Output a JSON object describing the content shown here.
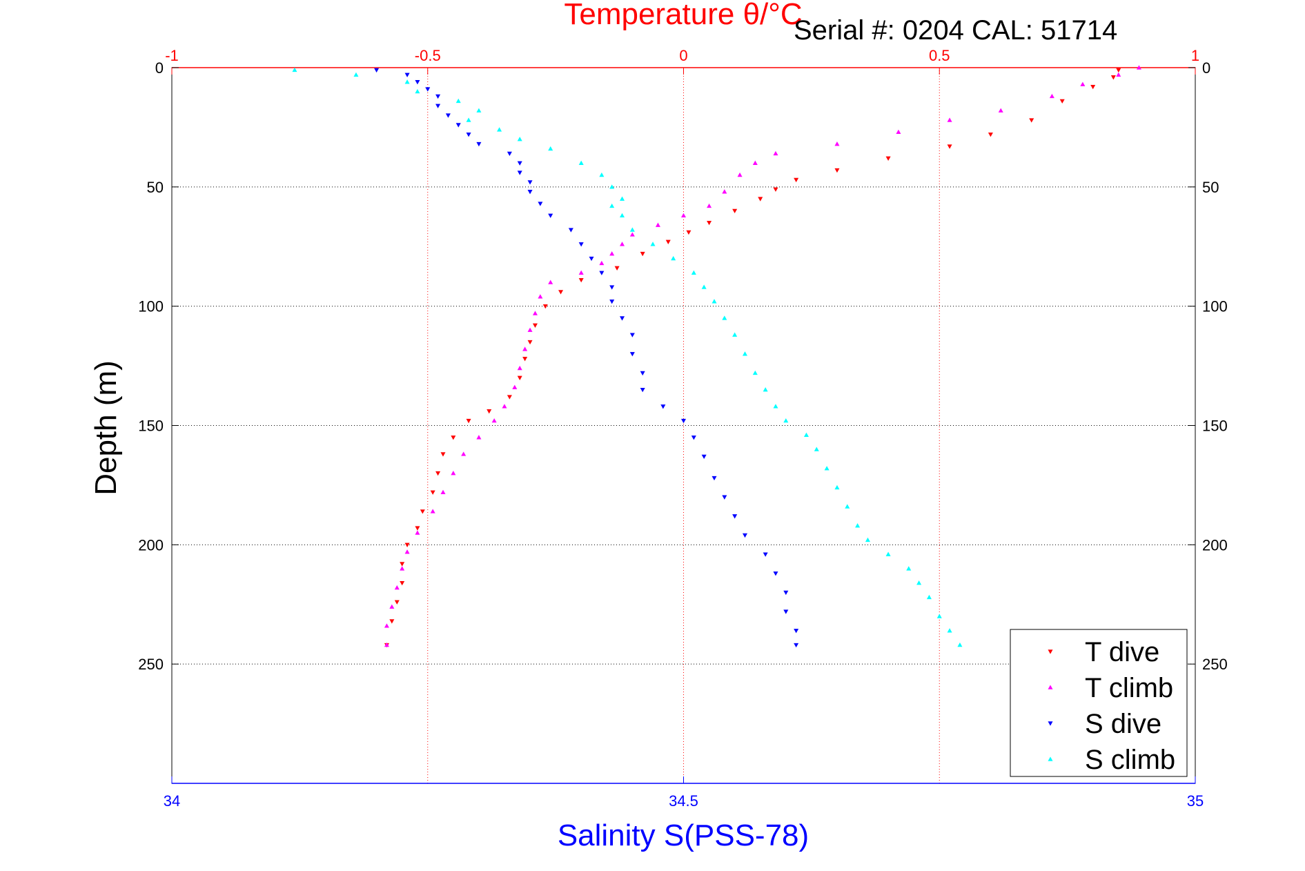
{
  "chart_data": {
    "type": "scatter",
    "title": "Temperature θ/°C",
    "subtitle": "Serial #: 0204  CAL: 51714",
    "xlabel": "Salinity S(PSS-78)",
    "ylabel": "Depth (m)",
    "top_axis": {
      "label": "Temperature θ/°C",
      "range": [
        -1,
        1
      ],
      "ticks": [
        "-1",
        "-0.5",
        "0",
        "0.5",
        "1"
      ],
      "color": "#ff0000"
    },
    "bottom_axis": {
      "label": "Salinity S(PSS-78)",
      "range": [
        34,
        35
      ],
      "ticks": [
        "34",
        "34.5",
        "35"
      ],
      "color": "#0000ff"
    },
    "y_axis": {
      "range": [
        0,
        300
      ],
      "reversed": true,
      "ticks": [
        "0",
        "50",
        "100",
        "150",
        "200",
        "250"
      ]
    },
    "grid": true,
    "legend_position": "bottom-right",
    "series": [
      {
        "name": "T dive",
        "axis": "temperature",
        "color": "#ff0000",
        "marker": "triangle-down",
        "points": [
          [
            0.85,
            1
          ],
          [
            0.84,
            4
          ],
          [
            0.8,
            8
          ],
          [
            0.74,
            14
          ],
          [
            0.68,
            22
          ],
          [
            0.6,
            28
          ],
          [
            0.52,
            33
          ],
          [
            0.4,
            38
          ],
          [
            0.3,
            43
          ],
          [
            0.22,
            47
          ],
          [
            0.18,
            51
          ],
          [
            0.15,
            55
          ],
          [
            0.1,
            60
          ],
          [
            0.05,
            65
          ],
          [
            0.01,
            69
          ],
          [
            -0.03,
            73
          ],
          [
            -0.08,
            78
          ],
          [
            -0.13,
            84
          ],
          [
            -0.2,
            89
          ],
          [
            -0.24,
            94
          ],
          [
            -0.27,
            100
          ],
          [
            -0.29,
            108
          ],
          [
            -0.3,
            115
          ],
          [
            -0.31,
            122
          ],
          [
            -0.32,
            130
          ],
          [
            -0.34,
            138
          ],
          [
            -0.38,
            144
          ],
          [
            -0.42,
            148
          ],
          [
            -0.45,
            155
          ],
          [
            -0.47,
            162
          ],
          [
            -0.48,
            170
          ],
          [
            -0.49,
            178
          ],
          [
            -0.51,
            186
          ],
          [
            -0.52,
            193
          ],
          [
            -0.54,
            200
          ],
          [
            -0.55,
            208
          ],
          [
            -0.55,
            216
          ],
          [
            -0.56,
            224
          ],
          [
            -0.57,
            232
          ],
          [
            -0.58,
            242
          ]
        ]
      },
      {
        "name": "T climb",
        "axis": "temperature",
        "color": "#ff00ff",
        "marker": "triangle-up",
        "points": [
          [
            0.89,
            0
          ],
          [
            0.85,
            3
          ],
          [
            0.78,
            7
          ],
          [
            0.72,
            12
          ],
          [
            0.62,
            18
          ],
          [
            0.52,
            22
          ],
          [
            0.42,
            27
          ],
          [
            0.3,
            32
          ],
          [
            0.18,
            36
          ],
          [
            0.14,
            40
          ],
          [
            0.11,
            45
          ],
          [
            0.08,
            52
          ],
          [
            0.05,
            58
          ],
          [
            0.0,
            62
          ],
          [
            -0.05,
            66
          ],
          [
            -0.1,
            70
          ],
          [
            -0.12,
            74
          ],
          [
            -0.14,
            78
          ],
          [
            -0.16,
            82
          ],
          [
            -0.2,
            86
          ],
          [
            -0.26,
            90
          ],
          [
            -0.28,
            96
          ],
          [
            -0.29,
            103
          ],
          [
            -0.3,
            110
          ],
          [
            -0.31,
            118
          ],
          [
            -0.32,
            126
          ],
          [
            -0.33,
            134
          ],
          [
            -0.35,
            142
          ],
          [
            -0.37,
            148
          ],
          [
            -0.4,
            155
          ],
          [
            -0.43,
            162
          ],
          [
            -0.45,
            170
          ],
          [
            -0.47,
            178
          ],
          [
            -0.49,
            186
          ],
          [
            -0.52,
            195
          ],
          [
            -0.54,
            203
          ],
          [
            -0.55,
            210
          ],
          [
            -0.56,
            218
          ],
          [
            -0.57,
            226
          ],
          [
            -0.58,
            234
          ],
          [
            -0.58,
            242
          ]
        ]
      },
      {
        "name": "S dive",
        "axis": "salinity",
        "color": "#0000ff",
        "marker": "triangle-down",
        "points": [
          [
            34.2,
            1
          ],
          [
            34.23,
            3
          ],
          [
            34.24,
            6
          ],
          [
            34.25,
            9
          ],
          [
            34.26,
            12
          ],
          [
            34.26,
            16
          ],
          [
            34.27,
            20
          ],
          [
            34.28,
            24
          ],
          [
            34.29,
            28
          ],
          [
            34.3,
            32
          ],
          [
            34.33,
            36
          ],
          [
            34.34,
            40
          ],
          [
            34.34,
            44
          ],
          [
            34.35,
            48
          ],
          [
            34.35,
            52
          ],
          [
            34.36,
            57
          ],
          [
            34.37,
            62
          ],
          [
            34.39,
            68
          ],
          [
            34.4,
            74
          ],
          [
            34.41,
            80
          ],
          [
            34.42,
            86
          ],
          [
            34.43,
            92
          ],
          [
            34.43,
            98
          ],
          [
            34.44,
            105
          ],
          [
            34.45,
            112
          ],
          [
            34.45,
            120
          ],
          [
            34.46,
            128
          ],
          [
            34.46,
            135
          ],
          [
            34.48,
            142
          ],
          [
            34.5,
            148
          ],
          [
            34.51,
            155
          ],
          [
            34.52,
            163
          ],
          [
            34.53,
            172
          ],
          [
            34.54,
            180
          ],
          [
            34.55,
            188
          ],
          [
            34.56,
            196
          ],
          [
            34.58,
            204
          ],
          [
            34.59,
            212
          ],
          [
            34.6,
            220
          ],
          [
            34.6,
            228
          ],
          [
            34.61,
            236
          ],
          [
            34.61,
            242
          ]
        ]
      },
      {
        "name": "S climb",
        "axis": "salinity",
        "color": "#00ffff",
        "marker": "triangle-up",
        "points": [
          [
            34.12,
            1
          ],
          [
            34.18,
            3
          ],
          [
            34.23,
            6
          ],
          [
            34.24,
            10
          ],
          [
            34.28,
            14
          ],
          [
            34.3,
            18
          ],
          [
            34.29,
            22
          ],
          [
            34.32,
            26
          ],
          [
            34.34,
            30
          ],
          [
            34.37,
            34
          ],
          [
            34.4,
            40
          ],
          [
            34.42,
            45
          ],
          [
            34.43,
            50
          ],
          [
            34.44,
            55
          ],
          [
            34.43,
            58
          ],
          [
            34.44,
            62
          ],
          [
            34.45,
            68
          ],
          [
            34.47,
            74
          ],
          [
            34.49,
            80
          ],
          [
            34.51,
            86
          ],
          [
            34.52,
            92
          ],
          [
            34.53,
            98
          ],
          [
            34.54,
            105
          ],
          [
            34.55,
            112
          ],
          [
            34.56,
            120
          ],
          [
            34.57,
            128
          ],
          [
            34.58,
            135
          ],
          [
            34.59,
            142
          ],
          [
            34.6,
            148
          ],
          [
            34.62,
            154
          ],
          [
            34.63,
            160
          ],
          [
            34.64,
            168
          ],
          [
            34.65,
            176
          ],
          [
            34.66,
            184
          ],
          [
            34.67,
            192
          ],
          [
            34.68,
            198
          ],
          [
            34.7,
            204
          ],
          [
            34.72,
            210
          ],
          [
            34.73,
            216
          ],
          [
            34.74,
            222
          ],
          [
            34.75,
            230
          ],
          [
            34.76,
            236
          ],
          [
            34.77,
            242
          ]
        ]
      }
    ]
  }
}
